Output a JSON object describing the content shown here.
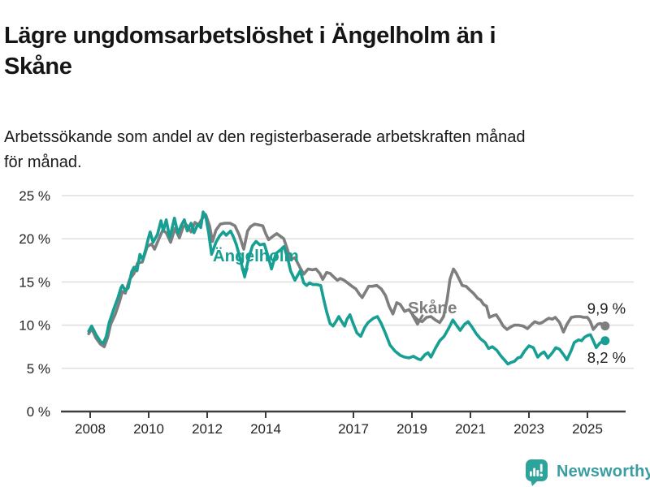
{
  "header": {
    "title": "Lägre ungdomsarbetslöshet i Ängelholm än i Skåne",
    "title_lines": [
      "Lägre ungdomsarbetslöshet i Ängelholm än i",
      "Skåne"
    ],
    "subtitle": "Arbetssökande som andel av den registerbaserade arbetskraften månad för månad.",
    "subtitle_lines": [
      "Arbetssökande som andel av den registerbaserade arbetskraften månad",
      "för månad."
    ]
  },
  "footer": {
    "brand": "Newsworthy",
    "logo_icon": "bar-chart-speech-bubble",
    "brand_color": "#3b9da1",
    "logo_color": "#2ea39b"
  },
  "colors": {
    "angelholm": "#169f92",
    "skane": "#7e7e7e",
    "grid": "#e2e2e2",
    "axis": "#3d3d3d",
    "tick_text": "#232323",
    "end_label_text": "#1d1d1d"
  },
  "chart_data": {
    "type": "line",
    "title": "Lägre ungdomsarbetslöshet i Ängelholm än i Skåne",
    "x_ticks": [
      2008,
      2010,
      2012,
      2014,
      2017,
      2019,
      2021,
      2023,
      2025
    ],
    "y_ticks": [
      0,
      5,
      10,
      15,
      20,
      25
    ],
    "y_tick_suffix": " %",
    "ylim": [
      0,
      25
    ],
    "xlim": [
      2007.1,
      2026.4
    ],
    "grid": true,
    "legend_position": "inline-labels",
    "series": [
      {
        "name": "Skåne",
        "color": "#7e7e7e",
        "end_label": "9,9 %",
        "end_label_position": "above",
        "label_anchor": {
          "x": 2018.86,
          "y": 11.35
        },
        "arrow": {
          "type": "chevron",
          "x": 2019.19,
          "y_top": 11.1,
          "y_tip": 10.1
        },
        "points": [
          [
            2007.95,
            9.0
          ],
          [
            2008.05,
            9.6
          ],
          [
            2008.2,
            8.5
          ],
          [
            2008.35,
            7.8
          ],
          [
            2008.48,
            7.5
          ],
          [
            2008.6,
            8.6
          ],
          [
            2008.7,
            10.1
          ],
          [
            2008.85,
            11.2
          ],
          [
            2009.0,
            12.7
          ],
          [
            2009.1,
            13.9
          ],
          [
            2009.2,
            13.7
          ],
          [
            2009.35,
            15.3
          ],
          [
            2009.5,
            16.0
          ],
          [
            2009.62,
            17.2
          ],
          [
            2009.78,
            17.3
          ],
          [
            2009.95,
            19.1
          ],
          [
            2010.1,
            19.4
          ],
          [
            2010.2,
            18.8
          ],
          [
            2010.35,
            20.0
          ],
          [
            2010.48,
            21.0
          ],
          [
            2010.6,
            20.7
          ],
          [
            2010.75,
            19.6
          ],
          [
            2010.9,
            21.2
          ],
          [
            2011.05,
            20.1
          ],
          [
            2011.18,
            21.4
          ],
          [
            2011.3,
            21.6
          ],
          [
            2011.45,
            20.8
          ],
          [
            2011.58,
            21.9
          ],
          [
            2011.7,
            21.6
          ],
          [
            2011.82,
            22.3
          ],
          [
            2011.95,
            22.8
          ],
          [
            2012.08,
            21.5
          ],
          [
            2012.18,
            19.7
          ],
          [
            2012.3,
            21.0
          ],
          [
            2012.45,
            21.7
          ],
          [
            2012.6,
            21.8
          ],
          [
            2012.78,
            21.8
          ],
          [
            2012.95,
            21.5
          ],
          [
            2013.1,
            20.4
          ],
          [
            2013.25,
            18.8
          ],
          [
            2013.38,
            20.9
          ],
          [
            2013.48,
            21.4
          ],
          [
            2013.62,
            21.7
          ],
          [
            2013.78,
            21.6
          ],
          [
            2013.9,
            21.5
          ],
          [
            2014.0,
            20.6
          ],
          [
            2014.1,
            19.9
          ],
          [
            2014.25,
            20.3
          ],
          [
            2014.38,
            20.6
          ],
          [
            2014.5,
            20.3
          ],
          [
            2014.62,
            20.0
          ],
          [
            2014.72,
            19.0
          ],
          [
            2014.85,
            17.6
          ],
          [
            2015.0,
            17.8
          ],
          [
            2015.2,
            16.5
          ],
          [
            2015.3,
            15.9
          ],
          [
            2015.45,
            16.5
          ],
          [
            2015.6,
            16.4
          ],
          [
            2015.72,
            16.5
          ],
          [
            2015.85,
            16.0
          ],
          [
            2015.95,
            15.3
          ],
          [
            2016.08,
            16.1
          ],
          [
            2016.2,
            16.0
          ],
          [
            2016.32,
            15.6
          ],
          [
            2016.45,
            15.2
          ],
          [
            2016.55,
            15.4
          ],
          [
            2016.68,
            15.2
          ],
          [
            2016.8,
            14.9
          ],
          [
            2016.95,
            14.5
          ],
          [
            2017.08,
            14.2
          ],
          [
            2017.2,
            13.6
          ],
          [
            2017.3,
            13.2
          ],
          [
            2017.42,
            13.9
          ],
          [
            2017.52,
            14.5
          ],
          [
            2017.65,
            14.5
          ],
          [
            2017.8,
            14.6
          ],
          [
            2017.95,
            14.2
          ],
          [
            2018.1,
            13.4
          ],
          [
            2018.22,
            12.2
          ],
          [
            2018.35,
            11.3
          ],
          [
            2018.48,
            12.6
          ],
          [
            2018.6,
            12.4
          ],
          [
            2018.75,
            11.6
          ],
          [
            2018.9,
            11.8
          ],
          [
            2019.05,
            11.1
          ],
          [
            2019.2,
            10.6
          ],
          [
            2019.35,
            10.4
          ],
          [
            2019.5,
            10.9
          ],
          [
            2019.65,
            11.0
          ],
          [
            2019.8,
            10.6
          ],
          [
            2019.95,
            10.3
          ],
          [
            2020.08,
            11.0
          ],
          [
            2020.2,
            12.9
          ],
          [
            2020.3,
            15.3
          ],
          [
            2020.42,
            16.5
          ],
          [
            2020.52,
            16.0
          ],
          [
            2020.62,
            15.3
          ],
          [
            2020.72,
            14.6
          ],
          [
            2020.85,
            14.5
          ],
          [
            2020.97,
            14.1
          ],
          [
            2021.1,
            13.7
          ],
          [
            2021.25,
            13.1
          ],
          [
            2021.35,
            12.9
          ],
          [
            2021.45,
            12.4
          ],
          [
            2021.55,
            12.2
          ],
          [
            2021.65,
            10.9
          ],
          [
            2021.78,
            11.1
          ],
          [
            2021.88,
            11.2
          ],
          [
            2022.0,
            10.6
          ],
          [
            2022.12,
            9.9
          ],
          [
            2022.25,
            9.5
          ],
          [
            2022.38,
            9.8
          ],
          [
            2022.5,
            10.0
          ],
          [
            2022.65,
            10.0
          ],
          [
            2022.8,
            9.9
          ],
          [
            2022.95,
            9.6
          ],
          [
            2023.1,
            10.1
          ],
          [
            2023.2,
            10.4
          ],
          [
            2023.35,
            10.2
          ],
          [
            2023.45,
            10.3
          ],
          [
            2023.58,
            10.6
          ],
          [
            2023.68,
            10.8
          ],
          [
            2023.8,
            10.7
          ],
          [
            2023.9,
            10.9
          ],
          [
            2024.05,
            10.3
          ],
          [
            2024.18,
            9.2
          ],
          [
            2024.3,
            10.1
          ],
          [
            2024.45,
            10.9
          ],
          [
            2024.6,
            11.0
          ],
          [
            2024.75,
            11.0
          ],
          [
            2024.88,
            10.9
          ],
          [
            2025.0,
            10.9
          ],
          [
            2025.1,
            10.4
          ],
          [
            2025.2,
            9.5
          ],
          [
            2025.35,
            10.1
          ],
          [
            2025.45,
            10.2
          ],
          [
            2025.55,
            9.9
          ]
        ]
      },
      {
        "name": "Ängelholm",
        "color": "#169f92",
        "end_label": "8,2 %",
        "end_label_position": "below",
        "label_anchor": {
          "x": 2012.19,
          "y": 17.4
        },
        "arrow": {
          "type": "triangle",
          "x": 2013.28,
          "y_top": 16.6,
          "y_tip": 15.3
        },
        "points": [
          [
            2007.95,
            9.3
          ],
          [
            2008.05,
            9.9
          ],
          [
            2008.2,
            8.9
          ],
          [
            2008.35,
            8.1
          ],
          [
            2008.45,
            7.9
          ],
          [
            2008.55,
            8.7
          ],
          [
            2008.65,
            10.3
          ],
          [
            2008.8,
            11.8
          ],
          [
            2008.95,
            13.2
          ],
          [
            2009.05,
            14.3
          ],
          [
            2009.1,
            14.6
          ],
          [
            2009.2,
            14.0
          ],
          [
            2009.3,
            14.3
          ],
          [
            2009.42,
            16.2
          ],
          [
            2009.5,
            16.7
          ],
          [
            2009.6,
            16.3
          ],
          [
            2009.7,
            18.2
          ],
          [
            2009.8,
            17.6
          ],
          [
            2009.9,
            18.8
          ],
          [
            2009.97,
            19.8
          ],
          [
            2010.05,
            20.8
          ],
          [
            2010.15,
            19.6
          ],
          [
            2010.3,
            20.5
          ],
          [
            2010.42,
            22.1
          ],
          [
            2010.5,
            20.9
          ],
          [
            2010.6,
            22.2
          ],
          [
            2010.72,
            20.1
          ],
          [
            2010.88,
            22.4
          ],
          [
            2011.0,
            20.6
          ],
          [
            2011.12,
            21.6
          ],
          [
            2011.22,
            22.2
          ],
          [
            2011.32,
            20.9
          ],
          [
            2011.45,
            21.8
          ],
          [
            2011.55,
            20.7
          ],
          [
            2011.68,
            21.7
          ],
          [
            2011.78,
            21.3
          ],
          [
            2011.86,
            23.1
          ],
          [
            2011.95,
            22.6
          ],
          [
            2012.05,
            20.7
          ],
          [
            2012.15,
            18.2
          ],
          [
            2012.3,
            19.6
          ],
          [
            2012.42,
            20.3
          ],
          [
            2012.55,
            20.8
          ],
          [
            2012.65,
            20.4
          ],
          [
            2012.8,
            20.9
          ],
          [
            2012.9,
            20.2
          ],
          [
            2013.0,
            19.3
          ],
          [
            2013.12,
            17.8
          ],
          [
            2013.28,
            15.6
          ],
          [
            2013.42,
            17.8
          ],
          [
            2013.55,
            19.2
          ],
          [
            2013.67,
            19.7
          ],
          [
            2013.8,
            19.3
          ],
          [
            2013.95,
            19.4
          ],
          [
            2014.08,
            18.0
          ],
          [
            2014.2,
            16.5
          ],
          [
            2014.35,
            18.3
          ],
          [
            2014.5,
            18.7
          ],
          [
            2014.62,
            19.1
          ],
          [
            2014.75,
            17.8
          ],
          [
            2014.85,
            16.3
          ],
          [
            2015.0,
            15.2
          ],
          [
            2015.18,
            16.3
          ],
          [
            2015.3,
            14.9
          ],
          [
            2015.4,
            14.6
          ],
          [
            2015.5,
            14.9
          ],
          [
            2015.62,
            14.7
          ],
          [
            2015.75,
            14.7
          ],
          [
            2015.88,
            14.6
          ],
          [
            2015.97,
            13.2
          ],
          [
            2016.08,
            11.6
          ],
          [
            2016.2,
            10.2
          ],
          [
            2016.3,
            9.9
          ],
          [
            2016.4,
            10.4
          ],
          [
            2016.5,
            11.0
          ],
          [
            2016.6,
            10.4
          ],
          [
            2016.7,
            9.9
          ],
          [
            2016.78,
            10.7
          ],
          [
            2016.88,
            11.2
          ],
          [
            2017.0,
            10.1
          ],
          [
            2017.12,
            9.1
          ],
          [
            2017.25,
            8.7
          ],
          [
            2017.38,
            9.7
          ],
          [
            2017.5,
            10.3
          ],
          [
            2017.68,
            10.8
          ],
          [
            2017.82,
            11.0
          ],
          [
            2017.95,
            10.2
          ],
          [
            2018.1,
            9.0
          ],
          [
            2018.25,
            7.7
          ],
          [
            2018.42,
            7.0
          ],
          [
            2018.6,
            6.5
          ],
          [
            2018.75,
            6.3
          ],
          [
            2018.9,
            6.2
          ],
          [
            2019.05,
            6.4
          ],
          [
            2019.2,
            6.1
          ],
          [
            2019.3,
            6.0
          ],
          [
            2019.45,
            6.6
          ],
          [
            2019.55,
            6.8
          ],
          [
            2019.65,
            6.3
          ],
          [
            2019.8,
            7.3
          ],
          [
            2019.95,
            8.2
          ],
          [
            2020.1,
            8.7
          ],
          [
            2020.25,
            9.6
          ],
          [
            2020.4,
            10.6
          ],
          [
            2020.52,
            10.0
          ],
          [
            2020.65,
            9.4
          ],
          [
            2020.8,
            10.1
          ],
          [
            2020.92,
            10.4
          ],
          [
            2021.05,
            9.8
          ],
          [
            2021.2,
            9.0
          ],
          [
            2021.35,
            8.4
          ],
          [
            2021.5,
            8.0
          ],
          [
            2021.62,
            7.3
          ],
          [
            2021.75,
            7.5
          ],
          [
            2021.9,
            7.1
          ],
          [
            2022.05,
            6.4
          ],
          [
            2022.18,
            5.9
          ],
          [
            2022.28,
            5.5
          ],
          [
            2022.4,
            5.7
          ],
          [
            2022.5,
            5.8
          ],
          [
            2022.62,
            6.2
          ],
          [
            2022.72,
            6.3
          ],
          [
            2022.85,
            7.0
          ],
          [
            2023.0,
            7.6
          ],
          [
            2023.15,
            7.4
          ],
          [
            2023.3,
            6.3
          ],
          [
            2023.42,
            6.7
          ],
          [
            2023.52,
            6.9
          ],
          [
            2023.65,
            6.2
          ],
          [
            2023.8,
            6.8
          ],
          [
            2023.92,
            7.4
          ],
          [
            2024.05,
            7.2
          ],
          [
            2024.18,
            6.6
          ],
          [
            2024.3,
            6.0
          ],
          [
            2024.45,
            7.1
          ],
          [
            2024.55,
            8.0
          ],
          [
            2024.7,
            8.3
          ],
          [
            2024.8,
            8.2
          ],
          [
            2024.9,
            8.6
          ],
          [
            2025.0,
            8.8
          ],
          [
            2025.1,
            8.9
          ],
          [
            2025.2,
            8.2
          ],
          [
            2025.3,
            7.4
          ],
          [
            2025.42,
            7.9
          ],
          [
            2025.55,
            8.2
          ]
        ]
      }
    ]
  }
}
